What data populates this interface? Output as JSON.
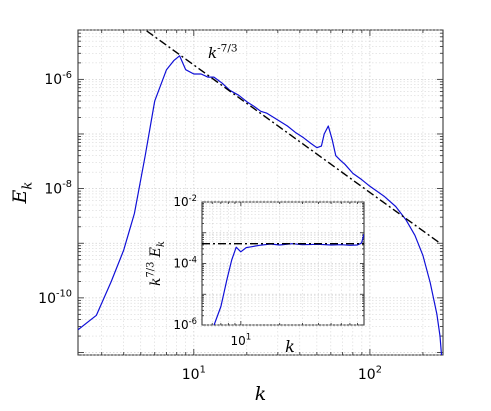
{
  "chart_data": [
    {
      "type": "line",
      "xscale": "log",
      "yscale": "log",
      "xlim": [
        2.2,
        260
      ],
      "ylim": [
        9e-12,
        8e-06
      ],
      "xlabel": "k",
      "ylabel": "E_k",
      "grid": true,
      "x_ticks": [
        10,
        100
      ],
      "x_tick_labels": [
        "10^1",
        "10^2"
      ],
      "y_ticks": [
        1e-06,
        1e-08,
        1e-10
      ],
      "y_tick_labels": [
        "10^-6",
        "10^-8",
        "10^-10"
      ],
      "annotation": "k^-7/3",
      "series": [
        {
          "style": "solid",
          "color": "#1010d8",
          "x": [
            2.2,
            2.8,
            3.4,
            4.0,
            4.6,
            5.3,
            6.0,
            7.0,
            7.7,
            8.3,
            9.0,
            10.0,
            11.0,
            12.0,
            13.0,
            14.5,
            16.0,
            18.0,
            20.0,
            22.0,
            24.0,
            26.0,
            30.0,
            34.0,
            38.0,
            42.0,
            46.0,
            50.0,
            53.0,
            55.0,
            58.0,
            61.0,
            64.0,
            68.0,
            72.0,
            80.0,
            90.0,
            100.0,
            120.0,
            140.0,
            160.0,
            180.0,
            200.0,
            220.0,
            240.0,
            250.0,
            255.0
          ],
          "y": [
            2.6e-11,
            4.8e-11,
            2e-10,
            7.5e-10,
            3.5e-09,
            4e-08,
            4e-07,
            1.5e-06,
            2.2e-06,
            2.7e-06,
            1.5e-06,
            1.25e-06,
            1.25e-06,
            1.1e-06,
            1.1e-06,
            8.5e-07,
            6.3e-07,
            5.1e-07,
            3.9e-07,
            3.2e-07,
            2.6e-07,
            2.4e-07,
            1.8e-07,
            1.4e-07,
            1.05e-07,
            8.5e-08,
            6.8e-08,
            5.6e-08,
            6e-08,
            1e-07,
            1.4e-07,
            8e-08,
            4e-08,
            3.3e-08,
            2.8e-08,
            1.9e-08,
            1.45e-08,
            1.1e-08,
            7.3e-09,
            4.7e-09,
            2.7e-09,
            1.4e-09,
            6e-10,
            1.9e-10,
            5e-11,
            2e-11,
            9e-12
          ]
        },
        {
          "style": "dash-dot",
          "color": "#000000",
          "x": [
            5.4,
            250
          ],
          "y": [
            7.7e-06,
            1e-09
          ]
        }
      ]
    },
    {
      "type": "line",
      "inset": true,
      "xscale": "log",
      "yscale": "log",
      "xlim": [
        5,
        90
      ],
      "ylim": [
        1e-06,
        0.01
      ],
      "xlabel": "k",
      "ylabel": "k^7/3 E_k",
      "grid": true,
      "x_ticks": [
        10
      ],
      "x_tick_labels": [
        "10^1"
      ],
      "y_ticks": [
        0.01,
        0.0001,
        1e-06
      ],
      "y_tick_labels": [
        "10^-2",
        "10^-4",
        "10^-6"
      ],
      "series": [
        {
          "style": "solid",
          "color": "#1010d8",
          "x": [
            6.2,
            7.0,
            7.8,
            8.5,
            9.2,
            10.0,
            11.0,
            12.0,
            14.0,
            17.0,
            20.0,
            25.0,
            30.0,
            40.0,
            50.0,
            60.0,
            70.0,
            80.0,
            86.0,
            90.0
          ],
          "y": [
            1e-06,
            4e-06,
            3e-05,
            0.00013,
            0.00034,
            0.00024,
            0.00033,
            0.00035,
            0.00039,
            0.00043,
            0.0004,
            0.00044,
            0.00041,
            0.00042,
            0.0004,
            0.00041,
            0.00039,
            0.0004,
            0.00046,
            0.0009
          ]
        },
        {
          "style": "dash-dot",
          "color": "#000000",
          "x": [
            5,
            90
          ],
          "y": [
            0.00044,
            0.00044
          ]
        }
      ]
    }
  ]
}
